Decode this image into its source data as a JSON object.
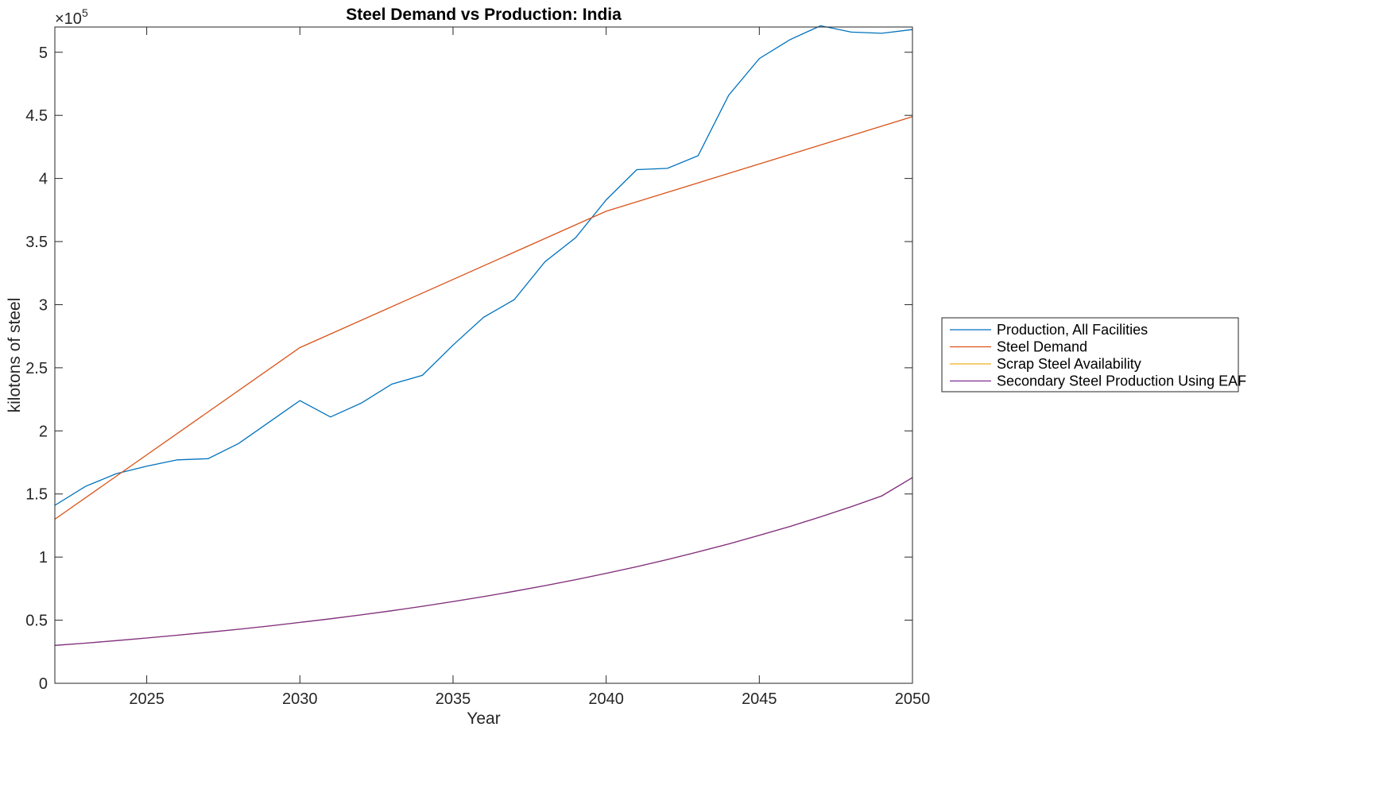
{
  "chart_data": {
    "type": "line",
    "title": "Steel Demand vs Production: India",
    "xlabel": "Year",
    "ylabel": "kilotons of steel",
    "y_exponent_label": "×10",
    "y_exponent_power": "5",
    "xlim": [
      2022,
      2050
    ],
    "ylim": [
      0,
      5.2
    ],
    "y_multiplier": 100000,
    "x_ticks": [
      2025,
      2030,
      2035,
      2040,
      2045,
      2050
    ],
    "x_tick_labels": [
      "2025",
      "2030",
      "2035",
      "2040",
      "2045",
      "2050"
    ],
    "y_ticks": [
      0,
      0.5,
      1,
      1.5,
      2,
      2.5,
      3,
      3.5,
      4,
      4.5,
      5
    ],
    "y_tick_labels": [
      "0",
      "0.5",
      "1",
      "1.5",
      "2",
      "2.5",
      "3",
      "3.5",
      "4",
      "4.5",
      "5"
    ],
    "grid": false,
    "legend_position": "outside right",
    "series": [
      {
        "name": "Production, All Facilities",
        "color": "#0072BD",
        "x": [
          2022,
          2023,
          2024,
          2025,
          2026,
          2027,
          2028,
          2029,
          2030,
          2031,
          2032,
          2033,
          2034,
          2035,
          2036,
          2037,
          2038,
          2039,
          2040,
          2041,
          2042,
          2043,
          2044,
          2045,
          2046,
          2047,
          2048,
          2049,
          2050
        ],
        "y": [
          1.41,
          1.56,
          1.66,
          1.72,
          1.77,
          1.78,
          1.9,
          2.07,
          2.24,
          2.11,
          2.22,
          2.37,
          2.44,
          2.68,
          2.9,
          3.04,
          3.34,
          3.53,
          3.83,
          4.07,
          4.08,
          4.18,
          4.66,
          4.95,
          5.1,
          5.21,
          5.16,
          5.15,
          5.18
        ]
      },
      {
        "name": "Steel Demand",
        "color": "#D95319",
        "x": [
          2022,
          2030,
          2040,
          2050
        ],
        "y": [
          1.3,
          2.66,
          3.74,
          4.49
        ]
      },
      {
        "name": "Scrap Steel Availability",
        "color": "#EDB120",
        "x": [
          2022,
          2023,
          2024,
          2025,
          2026,
          2027,
          2028,
          2029,
          2030,
          2031,
          2032,
          2033,
          2034,
          2035,
          2036,
          2037,
          2038,
          2039,
          2040,
          2041,
          2042,
          2043,
          2044,
          2045,
          2046,
          2047,
          2048,
          2049,
          2050
        ],
        "y": [
          0.3,
          0.318,
          0.338,
          0.359,
          0.381,
          0.404,
          0.428,
          0.454,
          0.482,
          0.511,
          0.542,
          0.575,
          0.61,
          0.648,
          0.687,
          0.729,
          0.774,
          0.821,
          0.871,
          0.924,
          0.981,
          1.041,
          1.104,
          1.172,
          1.243,
          1.319,
          1.399,
          1.485,
          1.63
        ]
      },
      {
        "name": "Secondary Steel Production Using EAF",
        "color": "#7E2F8E",
        "x": [
          2022,
          2023,
          2024,
          2025,
          2026,
          2027,
          2028,
          2029,
          2030,
          2031,
          2032,
          2033,
          2034,
          2035,
          2036,
          2037,
          2038,
          2039,
          2040,
          2041,
          2042,
          2043,
          2044,
          2045,
          2046,
          2047,
          2048,
          2049,
          2050
        ],
        "y": [
          0.3,
          0.318,
          0.338,
          0.359,
          0.381,
          0.404,
          0.428,
          0.454,
          0.482,
          0.511,
          0.542,
          0.575,
          0.61,
          0.648,
          0.687,
          0.729,
          0.774,
          0.821,
          0.871,
          0.924,
          0.981,
          1.041,
          1.104,
          1.172,
          1.243,
          1.319,
          1.399,
          1.485,
          1.63
        ]
      }
    ]
  }
}
